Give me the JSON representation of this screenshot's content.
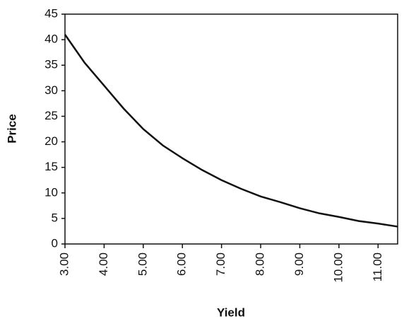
{
  "chart_data": {
    "type": "line",
    "x_label": "Yield",
    "y_label": "Price",
    "x": [
      3,
      3.5,
      4,
      4.5,
      5,
      5.5,
      6,
      6.5,
      7,
      7.5,
      8,
      8.5,
      9,
      9.5,
      10,
      10.5,
      11,
      11.5
    ],
    "series": [
      {
        "name": "Price",
        "color": "#111111",
        "values": [
          41,
          35.5,
          31,
          26.5,
          22.5,
          19.3,
          16.8,
          14.5,
          12.5,
          10.8,
          9.3,
          8.2,
          7,
          6,
          5.3,
          4.5,
          4,
          3.4
        ]
      }
    ],
    "xlim": [
      3,
      11.5
    ],
    "xticks": [
      {
        "value": 3,
        "label": "3.00"
      },
      {
        "value": 4,
        "label": "4.00"
      },
      {
        "value": 5,
        "label": "5.00"
      },
      {
        "value": 6,
        "label": "6.00"
      },
      {
        "value": 7,
        "label": "7.00"
      },
      {
        "value": 8,
        "label": "8.00"
      },
      {
        "value": 9,
        "label": "9.00"
      },
      {
        "value": 10,
        "label": "10.00"
      },
      {
        "value": 11,
        "label": "11.00"
      }
    ],
    "ylim": [
      0,
      45
    ],
    "yticks": [
      0,
      5,
      10,
      15,
      20,
      25,
      30,
      35,
      40,
      45
    ],
    "grid": false
  }
}
